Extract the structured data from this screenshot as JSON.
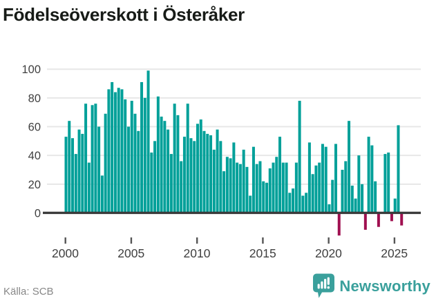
{
  "title": "Födelseöverskott i Österåker",
  "source": "Källa: SCB",
  "brand": {
    "name": "Newsworthy",
    "icon": "bar-chart-badge-icon"
  },
  "colors": {
    "positive": "#00a099",
    "negative": "#a01050",
    "axis": "#3b3b3b",
    "grid": "#e7e7e7",
    "tick_label": "#3f3f3f",
    "title": "#171b17",
    "source": "#878787",
    "brand": "#3aa09c"
  },
  "chart_data": {
    "type": "bar",
    "title": "Födelseöverskott i Österåker",
    "xlabel": "",
    "ylabel": "",
    "x_unit": "quarter",
    "range": "2000 Q1 – 2025 Q3",
    "ylim": [
      -20,
      100
    ],
    "yticks": [
      0,
      20,
      40,
      60,
      80,
      100
    ],
    "xticks": [
      2000,
      2005,
      2010,
      2015,
      2020,
      2025
    ],
    "grid": true,
    "legend": false,
    "categories": [
      "2000 Q1",
      "2000 Q2",
      "2000 Q3",
      "2000 Q4",
      "2001 Q1",
      "2001 Q2",
      "2001 Q3",
      "2001 Q4",
      "2002 Q1",
      "2002 Q2",
      "2002 Q3",
      "2002 Q4",
      "2003 Q1",
      "2003 Q2",
      "2003 Q3",
      "2003 Q4",
      "2004 Q1",
      "2004 Q2",
      "2004 Q3",
      "2004 Q4",
      "2005 Q1",
      "2005 Q2",
      "2005 Q3",
      "2005 Q4",
      "2006 Q1",
      "2006 Q2",
      "2006 Q3",
      "2006 Q4",
      "2007 Q1",
      "2007 Q2",
      "2007 Q3",
      "2007 Q4",
      "2008 Q1",
      "2008 Q2",
      "2008 Q3",
      "2008 Q4",
      "2009 Q1",
      "2009 Q2",
      "2009 Q3",
      "2009 Q4",
      "2010 Q1",
      "2010 Q2",
      "2010 Q3",
      "2010 Q4",
      "2011 Q1",
      "2011 Q2",
      "2011 Q3",
      "2011 Q4",
      "2012 Q1",
      "2012 Q2",
      "2012 Q3",
      "2012 Q4",
      "2013 Q1",
      "2013 Q2",
      "2013 Q3",
      "2013 Q4",
      "2014 Q1",
      "2014 Q2",
      "2014 Q3",
      "2014 Q4",
      "2015 Q1",
      "2015 Q2",
      "2015 Q3",
      "2015 Q4",
      "2016 Q1",
      "2016 Q2",
      "2016 Q3",
      "2016 Q4",
      "2017 Q1",
      "2017 Q2",
      "2017 Q3",
      "2017 Q4",
      "2018 Q1",
      "2018 Q2",
      "2018 Q3",
      "2018 Q4",
      "2019 Q1",
      "2019 Q2",
      "2019 Q3",
      "2019 Q4",
      "2020 Q1",
      "2020 Q2",
      "2020 Q3",
      "2020 Q4",
      "2021 Q1",
      "2021 Q2",
      "2021 Q3",
      "2021 Q4",
      "2022 Q1",
      "2022 Q2",
      "2022 Q3",
      "2022 Q4",
      "2023 Q1",
      "2023 Q2",
      "2023 Q3",
      "2023 Q4",
      "2024 Q1",
      "2024 Q2",
      "2024 Q3",
      "2024 Q4",
      "2025 Q1",
      "2025 Q2",
      "2025 Q3"
    ],
    "values": [
      53,
      64,
      52,
      41,
      58,
      55,
      76,
      35,
      75,
      76,
      60,
      26,
      69,
      86,
      91,
      84,
      87,
      86,
      79,
      60,
      78,
      69,
      57,
      91,
      80,
      99,
      42,
      50,
      81,
      67,
      64,
      58,
      41,
      76,
      68,
      36,
      53,
      76,
      52,
      50,
      62,
      65,
      57,
      55,
      54,
      44,
      58,
      50,
      29,
      39,
      38,
      49,
      35,
      34,
      44,
      32,
      12,
      46,
      34,
      36,
      22,
      21,
      31,
      35,
      39,
      53,
      35,
      35,
      14,
      17,
      35,
      78,
      12,
      14,
      49,
      27,
      33,
      35,
      48,
      46,
      6,
      23,
      48,
      -15,
      30,
      36,
      64,
      19,
      10,
      40,
      20,
      -11,
      53,
      47,
      22,
      -9,
      0,
      41,
      42,
      -5,
      10,
      61,
      -8
    ]
  }
}
